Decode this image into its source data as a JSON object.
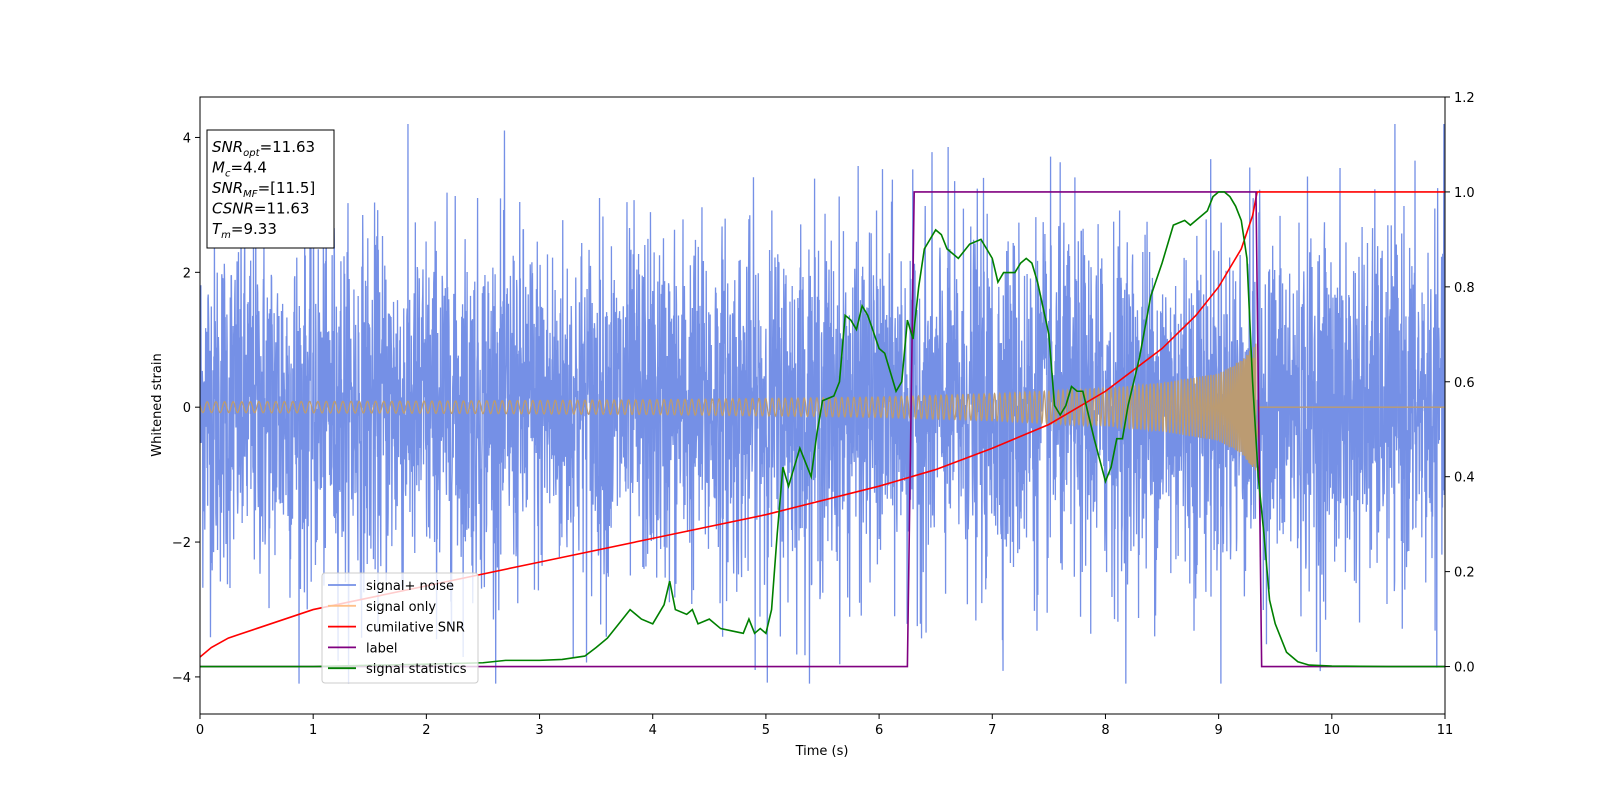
{
  "chart_data": {
    "type": "line",
    "xlabel": "Time (s)",
    "ylabel": "Whitened strain",
    "xlim": [
      0,
      11
    ],
    "ylim": [
      -4.55,
      4.6
    ],
    "y2lim": [
      -0.1,
      1.2
    ],
    "xticks": [
      "0",
      "1",
      "2",
      "3",
      "4",
      "5",
      "6",
      "7",
      "8",
      "9",
      "10",
      "11"
    ],
    "yticks": [
      "−4",
      "−2",
      "0",
      "2",
      "4"
    ],
    "y2ticks": [
      "0.0",
      "0.2",
      "0.4",
      "0.6",
      "0.8",
      "1.0",
      "1.2"
    ],
    "legend_position": "lower-left",
    "annotation": [
      {
        "sym": "SNR",
        "sub": "opt",
        "text": "=11.63"
      },
      {
        "sym": "M",
        "sub": "c",
        "text": "=4.4"
      },
      {
        "sym": "SNR",
        "sub": "MF",
        "text": "=[11.5]"
      },
      {
        "sym": "CSNR",
        "sub": "",
        "text": "=11.63"
      },
      {
        "sym": "T",
        "sub": "m",
        "text": "=9.33"
      }
    ],
    "series": [
      {
        "name": "signal+ noise",
        "axis": "left",
        "color": "#7590e6",
        "noise_band": {
          "x_range": [
            0,
            11
          ],
          "typical_sigma": 1.3,
          "peak_max": 4.2,
          "peak_min": -4.1
        }
      },
      {
        "name": "signal only",
        "axis": "left",
        "color": "#bb9b72",
        "envelope": {
          "x": [
            0,
            2,
            4,
            6,
            7,
            8,
            8.5,
            9,
            9.2,
            9.33,
            9.36,
            11
          ],
          "amplitude": [
            0.08,
            0.09,
            0.11,
            0.15,
            0.2,
            0.28,
            0.36,
            0.5,
            0.7,
            0.95,
            0.0,
            0.0
          ]
        }
      },
      {
        "name": "cumilative SNR",
        "axis": "right",
        "color": "#ff0000",
        "x": [
          0,
          0.1,
          0.25,
          0.5,
          1,
          1.5,
          2,
          3,
          4,
          5,
          6,
          6.5,
          7,
          7.5,
          8,
          8.5,
          8.8,
          9.0,
          9.2,
          9.3,
          9.34,
          11
        ],
        "y": [
          0.02,
          0.04,
          0.06,
          0.08,
          0.12,
          0.145,
          0.17,
          0.22,
          0.27,
          0.32,
          0.38,
          0.415,
          0.46,
          0.51,
          0.58,
          0.67,
          0.74,
          0.8,
          0.88,
          0.95,
          1.0,
          1.0
        ]
      },
      {
        "name": "label",
        "axis": "right",
        "color": "#800080",
        "x": [
          0,
          6.25,
          6.31,
          9.33,
          9.38,
          11
        ],
        "y": [
          0,
          0,
          1,
          1,
          0,
          0
        ]
      },
      {
        "name": "signal statistics",
        "axis": "right",
        "color": "#008000",
        "x": [
          0,
          1,
          2,
          2.5,
          2.7,
          3,
          3.2,
          3.4,
          3.5,
          3.6,
          3.7,
          3.8,
          3.9,
          4.0,
          4.1,
          4.15,
          4.2,
          4.3,
          4.35,
          4.4,
          4.5,
          4.6,
          4.7,
          4.8,
          4.85,
          4.9,
          4.95,
          5.0,
          5.05,
          5.1,
          5.15,
          5.2,
          5.25,
          5.3,
          5.4,
          5.45,
          5.5,
          5.6,
          5.65,
          5.7,
          5.75,
          5.8,
          5.85,
          5.9,
          6.0,
          6.05,
          6.15,
          6.2,
          6.25,
          6.3,
          6.35,
          6.4,
          6.5,
          6.55,
          6.6,
          6.7,
          6.8,
          6.9,
          6.95,
          7.0,
          7.05,
          7.1,
          7.2,
          7.25,
          7.3,
          7.35,
          7.4,
          7.5,
          7.55,
          7.6,
          7.65,
          7.7,
          7.75,
          7.8,
          7.85,
          7.9,
          8.0,
          8.05,
          8.1,
          8.15,
          8.2,
          8.3,
          8.4,
          8.5,
          8.6,
          8.7,
          8.75,
          8.8,
          8.85,
          8.9,
          8.95,
          9.0,
          9.05,
          9.1,
          9.15,
          9.2,
          9.25,
          9.3,
          9.35,
          9.4,
          9.45,
          9.5,
          9.6,
          9.7,
          9.8,
          10,
          10.5,
          11
        ],
        "y": [
          0.0,
          0.0,
          0.005,
          0.008,
          0.013,
          0.013,
          0.015,
          0.022,
          0.04,
          0.06,
          0.09,
          0.12,
          0.1,
          0.09,
          0.13,
          0.18,
          0.12,
          0.11,
          0.12,
          0.09,
          0.1,
          0.08,
          0.075,
          0.07,
          0.1,
          0.07,
          0.08,
          0.07,
          0.12,
          0.28,
          0.42,
          0.38,
          0.42,
          0.46,
          0.4,
          0.49,
          0.56,
          0.57,
          0.6,
          0.74,
          0.73,
          0.71,
          0.76,
          0.74,
          0.67,
          0.66,
          0.58,
          0.6,
          0.73,
          0.69,
          0.8,
          0.88,
          0.92,
          0.91,
          0.88,
          0.86,
          0.89,
          0.9,
          0.88,
          0.86,
          0.81,
          0.83,
          0.83,
          0.85,
          0.86,
          0.85,
          0.81,
          0.7,
          0.55,
          0.53,
          0.55,
          0.59,
          0.58,
          0.58,
          0.53,
          0.48,
          0.39,
          0.42,
          0.48,
          0.48,
          0.55,
          0.65,
          0.78,
          0.85,
          0.93,
          0.94,
          0.93,
          0.94,
          0.95,
          0.96,
          0.99,
          1.0,
          1.0,
          0.99,
          0.97,
          0.94,
          0.86,
          0.6,
          0.4,
          0.28,
          0.14,
          0.09,
          0.03,
          0.01,
          0.003,
          0.001,
          0.0,
          0.0
        ]
      }
    ]
  }
}
